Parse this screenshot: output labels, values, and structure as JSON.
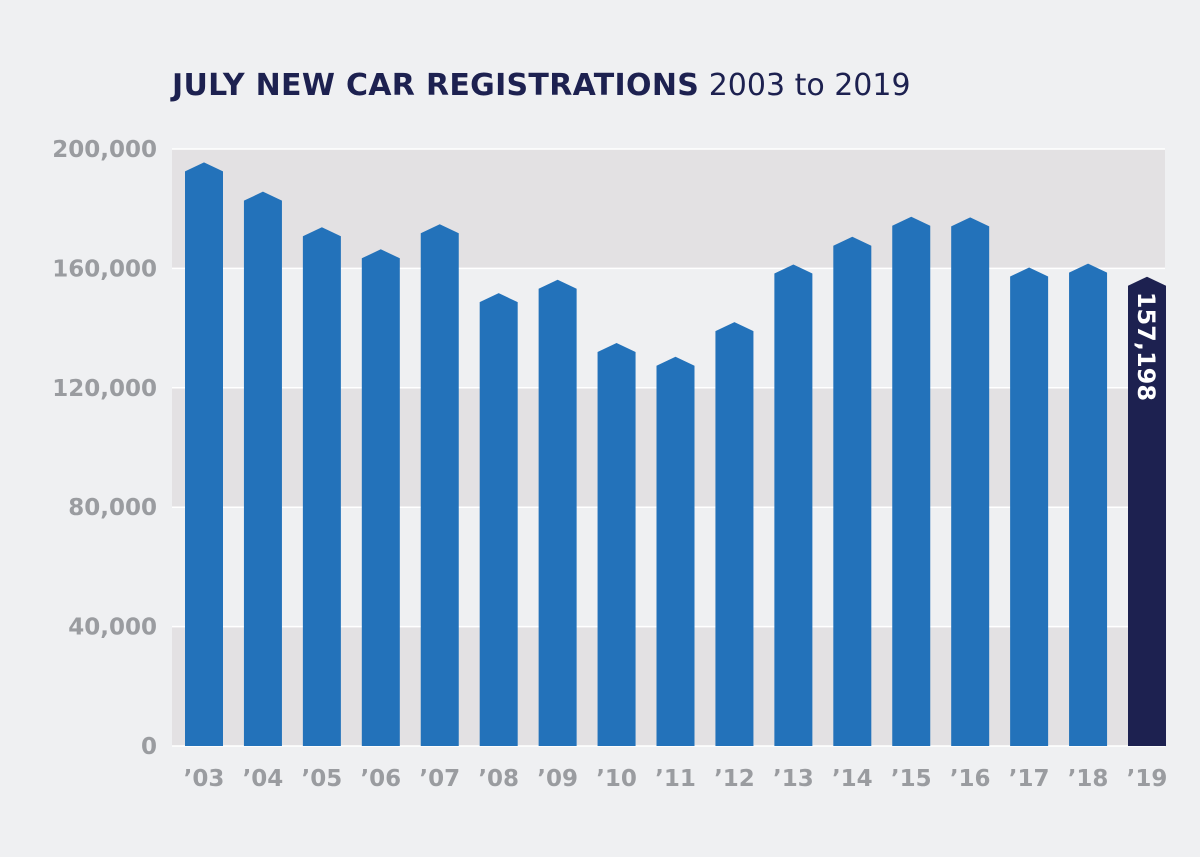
{
  "title": {
    "main": "JULY NEW CAR REGISTRATIONS",
    "sub": "2003 to 2019"
  },
  "colors": {
    "bar": "#2372ba",
    "highlight_bar": "#1d2150",
    "band": "#e3e1e3",
    "background": "#eff0f2",
    "gridline": "#ffffff",
    "tick_text": "#9a9ca0",
    "title": "#1d2150"
  },
  "chart_data": {
    "type": "bar",
    "title": "JULY NEW CAR REGISTRATIONS 2003 to 2019",
    "xlabel": "",
    "ylabel": "",
    "ylim": [
      0,
      200000
    ],
    "yticks": [
      0,
      40000,
      80000,
      120000,
      160000,
      200000
    ],
    "ytick_labels": [
      "0",
      "40,000",
      "80,000",
      "120,000",
      "160,000",
      "200,000"
    ],
    "categories": [
      "’03",
      "’04",
      "’05",
      "’06",
      "’07",
      "’08",
      "’09",
      "’10",
      "’11",
      "’12",
      "’13",
      "’14",
      "’15",
      "’16",
      "’17",
      "’18",
      "’19"
    ],
    "values": [
      195500,
      185700,
      173800,
      166400,
      174800,
      151700,
      156200,
      135000,
      130400,
      142000,
      161300,
      170600,
      177300,
      177100,
      160300,
      161600,
      157198
    ],
    "highlight_index": 16,
    "data_labels": [
      {
        "index": 16,
        "text": "157,198"
      }
    ],
    "grid": true,
    "banded_background": true,
    "legend": "none"
  }
}
